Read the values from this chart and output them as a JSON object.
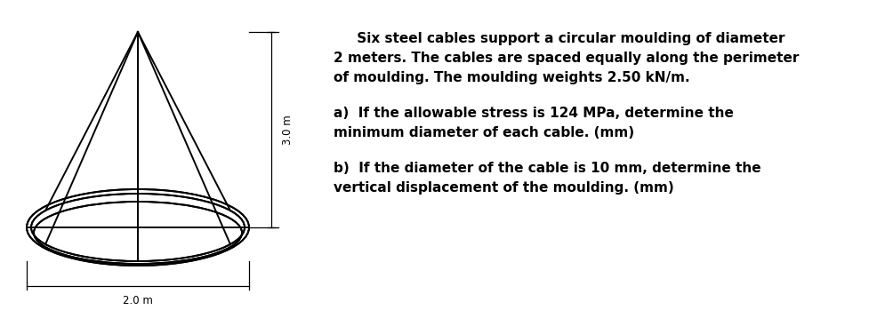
{
  "background_color": "#ffffff",
  "fig_width": 9.87,
  "fig_height": 3.76,
  "text_color": "#000000",
  "label_3m": "3.0 m",
  "label_2m": "2.0 m",
  "para1_line1": "     Six steel cables support a circular moulding of diameter",
  "para1_line2": "2 meters. The cables are spaced equally along the perimeter",
  "para1_line3": "of moulding. The moulding weights 2.50 kN/m.",
  "para2_line1": "a)  If the allowable stress is 124 MPa, determine the",
  "para2_line2": "minimum diameter of each cable. (mm)",
  "para3_line1": "b)  If the diameter of the cable is 10 mm, determine the",
  "para3_line2": "vertical displacement of the moulding. (mm)"
}
